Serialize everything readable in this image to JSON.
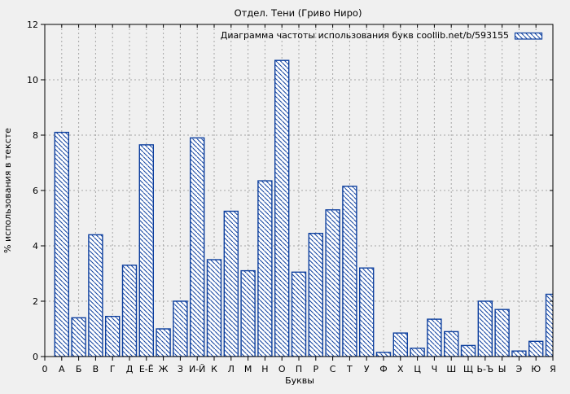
{
  "chart_data": {
    "type": "bar",
    "title": "Отдел. Тени (Гриво Ниро)",
    "legend": "Диаграмма частоты использования букв coollib.net/b/593155",
    "xlabel": "Буквы",
    "ylabel": "% использования в тексте",
    "origin_label": "0",
    "categories": [
      "А",
      "Б",
      "В",
      "Г",
      "Д",
      "Е-Ё",
      "Ж",
      "З",
      "И-Й",
      "К",
      "Л",
      "М",
      "Н",
      "О",
      "П",
      "Р",
      "С",
      "Т",
      "У",
      "Ф",
      "Х",
      "Ц",
      "Ч",
      "Ш",
      "Щ",
      "Ь-Ъ",
      "Ы",
      "Э",
      "Ю",
      "Я"
    ],
    "values": [
      8.1,
      1.4,
      4.4,
      1.45,
      3.3,
      7.65,
      1.0,
      2.0,
      7.9,
      3.5,
      5.25,
      3.1,
      6.35,
      10.7,
      3.05,
      4.45,
      5.3,
      6.15,
      3.2,
      0.15,
      0.85,
      0.3,
      1.35,
      0.9,
      0.4,
      2.0,
      1.7,
      0.2,
      0.55,
      2.25
    ],
    "ylim": [
      0,
      12
    ],
    "yticks": [
      0,
      2,
      4,
      6,
      8,
      10,
      12
    ],
    "grid": true,
    "legend_position": "top-right-inside",
    "bar_style": "white fill with blue diagonal hatch",
    "colors": {
      "bar_border": "#0d3f9e",
      "bar_fill": "#ffffff",
      "grid": "#a6a6a6",
      "frame": "#000000",
      "background": "#f0f0f0",
      "text": "#000000"
    }
  }
}
